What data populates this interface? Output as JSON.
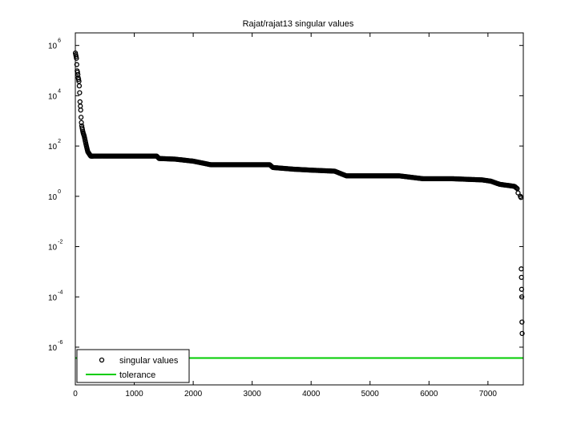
{
  "chart_data": {
    "type": "scatter",
    "title": "Rajat/rajat13 singular values",
    "xlabel": "",
    "ylabel": "",
    "xlim": [
      0,
      7600
    ],
    "ylim_log10": [
      -7.5,
      6.5
    ],
    "y_scale": "log",
    "grid": false,
    "legend_position": "bottom-left",
    "x_ticks": [
      0,
      1000,
      2000,
      3000,
      4000,
      5000,
      6000,
      7000
    ],
    "x_tick_labels": [
      "0",
      "1000",
      "2000",
      "3000",
      "4000",
      "5000",
      "6000",
      "7000"
    ],
    "y_ticks": [
      {
        "base": "10",
        "exp": "6",
        "value": 1000000.0
      },
      {
        "base": "10",
        "exp": "4",
        "value": 10000.0
      },
      {
        "base": "10",
        "exp": "2",
        "value": 100.0
      },
      {
        "base": "10",
        "exp": "0",
        "value": 1
      },
      {
        "base": "10",
        "exp": "-2",
        "value": 0.01
      },
      {
        "base": "10",
        "exp": "-4",
        "value": 0.0001
      },
      {
        "base": "10",
        "exp": "-6",
        "value": 1e-06
      }
    ],
    "series": [
      {
        "name": "singular values",
        "marker": "circle",
        "color": "#000000",
        "profile": [
          [
            1,
            500000
          ],
          [
            20,
            300000
          ],
          [
            30,
            100000
          ],
          [
            40,
            80000
          ],
          [
            50,
            50000
          ],
          [
            60,
            40000
          ],
          [
            70,
            20000
          ],
          [
            80,
            5000
          ],
          [
            90,
            3000
          ],
          [
            100,
            1000
          ],
          [
            110,
            600
          ],
          [
            130,
            350
          ],
          [
            150,
            250
          ],
          [
            180,
            120
          ],
          [
            210,
            60
          ],
          [
            260,
            40
          ],
          [
            500,
            40
          ],
          [
            1000,
            40
          ],
          [
            1380,
            40
          ],
          [
            1420,
            32
          ],
          [
            1700,
            30
          ],
          [
            2000,
            25
          ],
          [
            2300,
            18
          ],
          [
            2500,
            18
          ],
          [
            3300,
            18
          ],
          [
            3350,
            14
          ],
          [
            3700,
            12
          ],
          [
            4000,
            11
          ],
          [
            4400,
            10
          ],
          [
            4600,
            6.5
          ],
          [
            5500,
            6.5
          ],
          [
            5900,
            5
          ],
          [
            6400,
            5
          ],
          [
            6900,
            4.5
          ],
          [
            7050,
            4
          ],
          [
            7200,
            3
          ],
          [
            7450,
            2.5
          ],
          [
            7500,
            2
          ],
          [
            7520,
            1
          ]
        ],
        "trailing": [
          [
            7550,
            1
          ],
          [
            7560,
            0.9
          ],
          [
            7565,
            0.0013
          ],
          [
            7568,
            0.0006
          ],
          [
            7571,
            0.0002
          ],
          [
            7574,
            0.0001
          ],
          [
            7577,
            1e-05
          ],
          [
            7580,
            3.5e-06
          ]
        ]
      },
      {
        "name": "tolerance",
        "type": "line",
        "color": "#00cc00",
        "y": 3.7e-07,
        "x": [
          0,
          7600
        ]
      }
    ]
  }
}
